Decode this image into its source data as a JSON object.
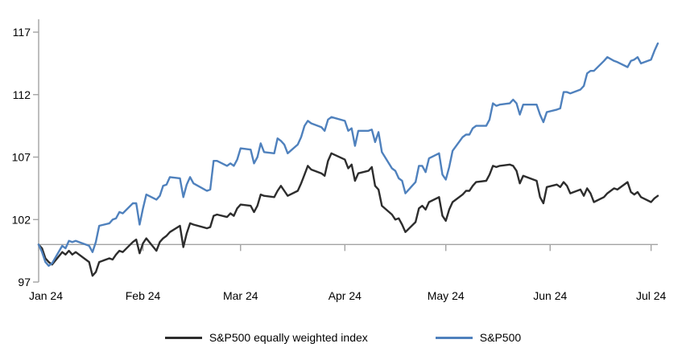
{
  "page": {
    "background": "#ffffff"
  },
  "chart_data": {
    "type": "line",
    "title": "",
    "description": "S&P500 vs S&P500 equally weighted index, indexed to 100 at start of Jan 2024, daily through early Jul 2024",
    "axis_color": "#a3a3a3",
    "grid": "off",
    "legend_position": "bottom-center",
    "x_axis": {
      "tick_labels": [
        "Jan 24",
        "Feb 24",
        "Mar 24",
        "Apr 24",
        "May 24",
        "Jun 24",
        "Jul 24"
      ],
      "tick_day_offsets": [
        0,
        31,
        60,
        91,
        121,
        152,
        182
      ],
      "baseline_value": 100
    },
    "y_axis": {
      "tick_labels": [
        "97",
        "102",
        "107",
        "112",
        "117"
      ],
      "ticks": [
        97,
        102,
        107,
        112,
        117
      ],
      "min": 97,
      "max": 118
    },
    "x_day_offsets": [
      0,
      1,
      2,
      3,
      4,
      7,
      8,
      9,
      10,
      11,
      15,
      16,
      17,
      18,
      21,
      22,
      23,
      24,
      25,
      28,
      29,
      30,
      31,
      32,
      35,
      36,
      37,
      38,
      39,
      42,
      43,
      44,
      45,
      46,
      50,
      51,
      52,
      53,
      56,
      57,
      58,
      59,
      60,
      63,
      64,
      65,
      66,
      67,
      70,
      71,
      72,
      73,
      74,
      77,
      78,
      79,
      80,
      81,
      84,
      85,
      86,
      87,
      91,
      92,
      93,
      94,
      95,
      98,
      99,
      100,
      101,
      102,
      105,
      106,
      107,
      108,
      109,
      112,
      113,
      114,
      115,
      116,
      119,
      120,
      121,
      122,
      123,
      126,
      127,
      128,
      129,
      130,
      133,
      134,
      135,
      136,
      137,
      140,
      141,
      142,
      143,
      144,
      148,
      149,
      150,
      151,
      154,
      155,
      156,
      157,
      158,
      161,
      162,
      163,
      164,
      165,
      168,
      169,
      171,
      172,
      175,
      176,
      177,
      178,
      179,
      182,
      183,
      184
    ],
    "series": [
      {
        "name": "S&P500 equally weighted index",
        "color": "#2d2d2d",
        "values": [
          100.0,
          99.7,
          98.9,
          98.6,
          98.4,
          99.4,
          99.2,
          99.5,
          99.2,
          99.4,
          98.6,
          97.5,
          97.8,
          98.6,
          98.9,
          98.8,
          99.2,
          99.5,
          99.4,
          100.2,
          100.4,
          99.3,
          100.1,
          100.5,
          99.5,
          100.2,
          100.5,
          100.7,
          101.0,
          101.5,
          99.8,
          100.9,
          101.7,
          101.6,
          101.3,
          101.4,
          102.3,
          102.4,
          102.2,
          102.5,
          102.3,
          102.9,
          103.2,
          103.1,
          102.6,
          103.1,
          104.0,
          103.9,
          103.8,
          104.3,
          104.7,
          104.3,
          103.9,
          104.3,
          104.9,
          105.6,
          106.3,
          106.0,
          105.7,
          105.5,
          106.7,
          107.3,
          106.8,
          106.1,
          106.4,
          105.1,
          105.7,
          105.9,
          106.2,
          104.7,
          104.4,
          103.1,
          102.4,
          102.0,
          102.1,
          101.6,
          101.0,
          101.8,
          102.9,
          103.1,
          102.8,
          103.4,
          103.8,
          102.3,
          101.9,
          102.8,
          103.4,
          104.0,
          104.3,
          104.3,
          104.7,
          105.0,
          105.1,
          105.6,
          106.3,
          106.2,
          106.3,
          106.4,
          106.3,
          105.9,
          104.9,
          105.5,
          105.1,
          103.8,
          103.3,
          104.6,
          104.8,
          104.6,
          105.0,
          104.7,
          104.1,
          104.4,
          103.9,
          104.5,
          104.1,
          103.4,
          103.8,
          104.1,
          104.5,
          104.4,
          105.0,
          104.2,
          104.0,
          104.2,
          103.8,
          103.4,
          103.7,
          103.9
        ]
      },
      {
        "name": "S&P500",
        "color": "#4f81bd",
        "values": [
          100.0,
          99.4,
          98.6,
          98.3,
          98.5,
          99.9,
          99.7,
          100.3,
          100.2,
          100.3,
          99.9,
          99.4,
          100.2,
          101.5,
          101.7,
          102.0,
          102.1,
          102.6,
          102.5,
          103.3,
          103.3,
          101.6,
          102.9,
          104.0,
          103.6,
          103.9,
          104.7,
          104.8,
          105.4,
          105.3,
          103.8,
          104.8,
          105.4,
          104.9,
          104.3,
          104.4,
          106.7,
          106.7,
          106.3,
          106.5,
          106.3,
          106.8,
          107.7,
          107.6,
          106.5,
          107.0,
          108.1,
          107.4,
          107.3,
          108.5,
          108.3,
          108.0,
          107.3,
          108.0,
          108.6,
          109.5,
          109.9,
          109.7,
          109.4,
          109.1,
          110.0,
          110.2,
          109.9,
          109.1,
          109.3,
          107.9,
          109.1,
          109.1,
          109.2,
          108.2,
          109.0,
          107.4,
          106.1,
          105.9,
          105.3,
          105.1,
          104.1,
          105.0,
          106.3,
          106.3,
          105.8,
          106.9,
          107.3,
          105.6,
          105.2,
          106.2,
          107.5,
          108.6,
          108.8,
          108.8,
          109.3,
          109.5,
          109.5,
          110.0,
          111.3,
          111.1,
          111.2,
          111.3,
          111.6,
          111.3,
          110.4,
          111.2,
          111.2,
          110.4,
          109.8,
          110.6,
          110.8,
          110.9,
          112.2,
          112.2,
          112.1,
          112.4,
          112.7,
          113.7,
          113.9,
          113.9,
          114.7,
          115.0,
          114.7,
          114.6,
          114.2,
          114.7,
          114.8,
          115.0,
          114.5,
          114.8,
          115.5,
          116.1
        ]
      }
    ]
  }
}
